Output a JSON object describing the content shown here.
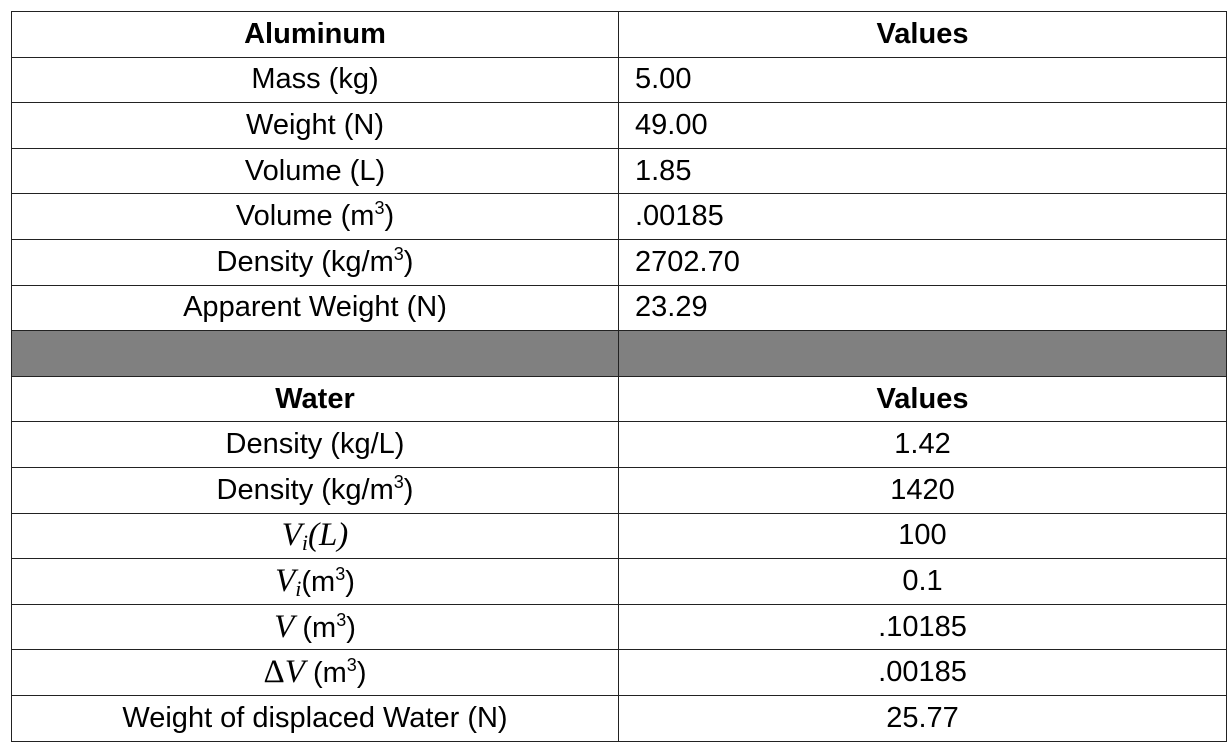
{
  "aluminum_table": {
    "header": {
      "label": "Aluminum",
      "value": "Values"
    },
    "rows": [
      {
        "label": "Mass (kg)",
        "value": "5.00"
      },
      {
        "label": "Weight (N)",
        "value": "49.00"
      },
      {
        "label": "Volume (L)",
        "value": "1.85"
      },
      {
        "label_prefix": "Volume (m",
        "label_sup": "3",
        "label_suffix": ")",
        "value": ".00185"
      },
      {
        "label_prefix": "Density (kg/m",
        "label_sup": "3",
        "label_suffix": ")",
        "value": "2702.70"
      },
      {
        "label": "Apparent Weight (N)",
        "value": "23.29"
      }
    ]
  },
  "water_table": {
    "header": {
      "label": "Water",
      "value": "Values"
    },
    "rows": [
      {
        "label": "Density (kg/L)",
        "value": "1.42"
      },
      {
        "label_prefix": "Density (kg/m",
        "label_sup": "3",
        "label_suffix": ")",
        "value": "1420"
      },
      {
        "symbol": "V",
        "subscript": "i",
        "unit": "(L)",
        "value": "100"
      },
      {
        "symbol": "V",
        "subscript": "i",
        "unit_prefix": "(m",
        "unit_sup": "3",
        "unit_suffix": ")",
        "value": "0.1"
      },
      {
        "symbol": "V",
        "unit_prefix": "(m",
        "unit_sup": "3",
        "unit_suffix": ")",
        "value": ".10185"
      },
      {
        "delta": "Δ",
        "symbol": "V",
        "unit_prefix": "(m",
        "unit_sup": "3",
        "unit_suffix": ")",
        "value": ".00185"
      },
      {
        "label": "Weight of displaced Water (N)",
        "value": "25.77"
      }
    ]
  },
  "colors": {
    "separator_fill": "#808080",
    "border": "#222222",
    "text": "#000000",
    "background": "#ffffff"
  }
}
